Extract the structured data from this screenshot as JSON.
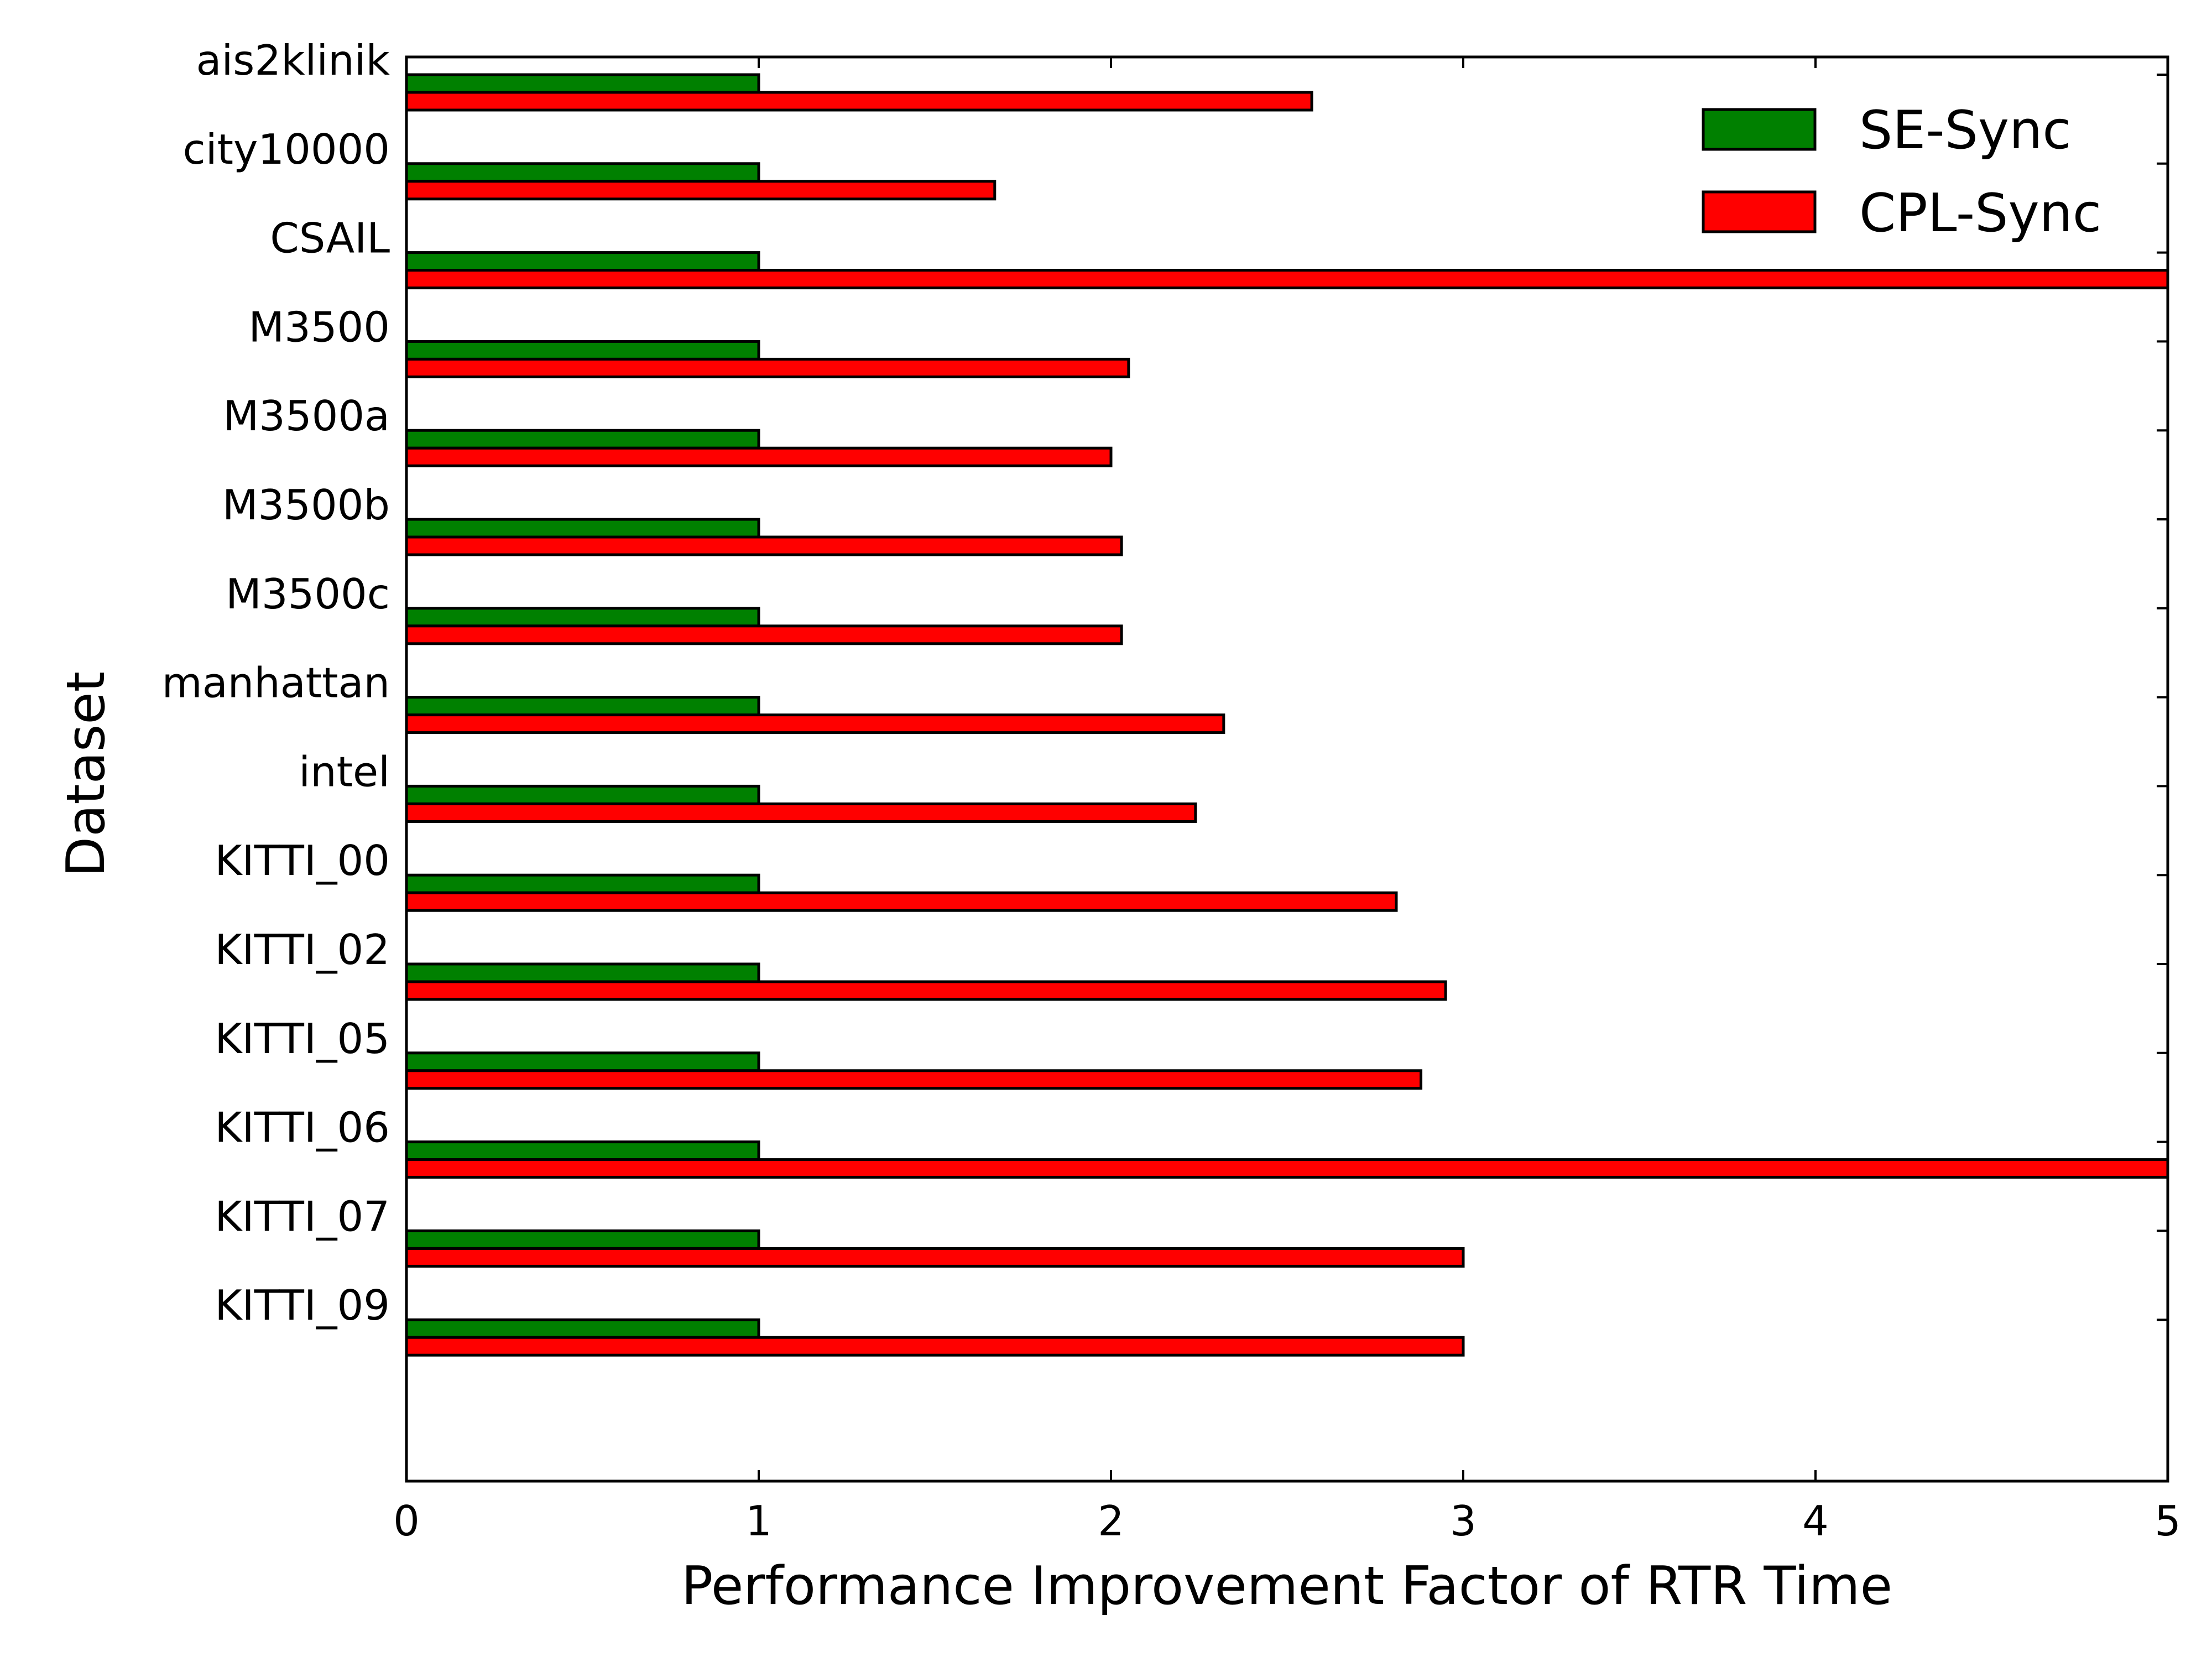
{
  "chart_data": {
    "type": "bar",
    "orientation": "horizontal",
    "categories": [
      "ais2klinik",
      "city10000",
      "CSAIL",
      "M3500",
      "M3500a",
      "M3500b",
      "M3500c",
      "manhattan",
      "intel",
      "KITTI_00",
      "KITTI_02",
      "KITTI_05",
      "KITTI_06",
      "KITTI_07",
      "KITTI_09"
    ],
    "series": [
      {
        "name": "SE-Sync",
        "color": "#008000",
        "values": [
          1,
          1,
          1,
          1,
          1,
          1,
          1,
          1,
          1,
          1,
          1,
          1,
          1,
          1,
          1
        ]
      },
      {
        "name": "CPL-Sync",
        "color": "#ff0000",
        "values": [
          2.57,
          1.67,
          5.0,
          2.05,
          2.0,
          2.03,
          2.03,
          2.32,
          2.24,
          2.81,
          2.95,
          2.88,
          5.0,
          3.0,
          3.0
        ]
      }
    ],
    "xlabel": "Performance Improvement Factor of RTR Time",
    "ylabel": "Dataset",
    "xlim": [
      0,
      5
    ],
    "xticks": [
      "0",
      "1",
      "2",
      "3",
      "4",
      "5"
    ],
    "grid": false,
    "legend_position": "top-right"
  }
}
